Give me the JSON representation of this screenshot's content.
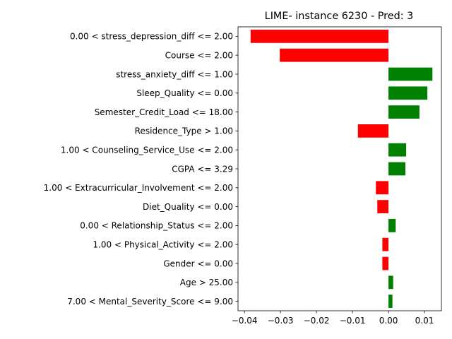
{
  "chart_data": {
    "type": "bar",
    "orientation": "horizontal",
    "title": "LIME- instance 6230 - Pred: 3",
    "xlabel": "",
    "ylabel": "",
    "xlim": [
      -0.0418,
      0.0147
    ],
    "xticks": [
      -0.04,
      -0.03,
      -0.02,
      -0.01,
      0.0,
      0.01
    ],
    "xtick_labels": [
      "−0.04",
      "−0.03",
      "−0.02",
      "−0.01",
      "0.00",
      "0.01"
    ],
    "grid": false,
    "positive_color": "#008000",
    "negative_color": "#ff0000",
    "categories": [
      "0.00 < stress_depression_diff <= 2.00",
      "Course <= 2.00",
      "stress_anxiety_diff <= 1.00",
      "Sleep_Quality <= 0.00",
      "Semester_Credit_Load <= 18.00",
      "Residence_Type > 1.00",
      "1.00 < Counseling_Service_Use <= 2.00",
      "CGPA <= 3.29",
      "1.00 < Extracurricular_Involvement <= 2.00",
      "Diet_Quality <= 0.00",
      "0.00 < Relationship_Status <= 2.00",
      "1.00 < Physical_Activity <= 2.00",
      "Gender <= 0.00",
      "Age > 25.00",
      "7.00 < Mental_Severity_Score <= 9.00"
    ],
    "values": [
      -0.0383,
      -0.0302,
      0.0122,
      0.0108,
      0.0086,
      -0.0085,
      0.0049,
      0.0047,
      -0.0035,
      -0.0031,
      0.002,
      -0.0017,
      -0.0017,
      0.0013,
      0.0011
    ]
  }
}
